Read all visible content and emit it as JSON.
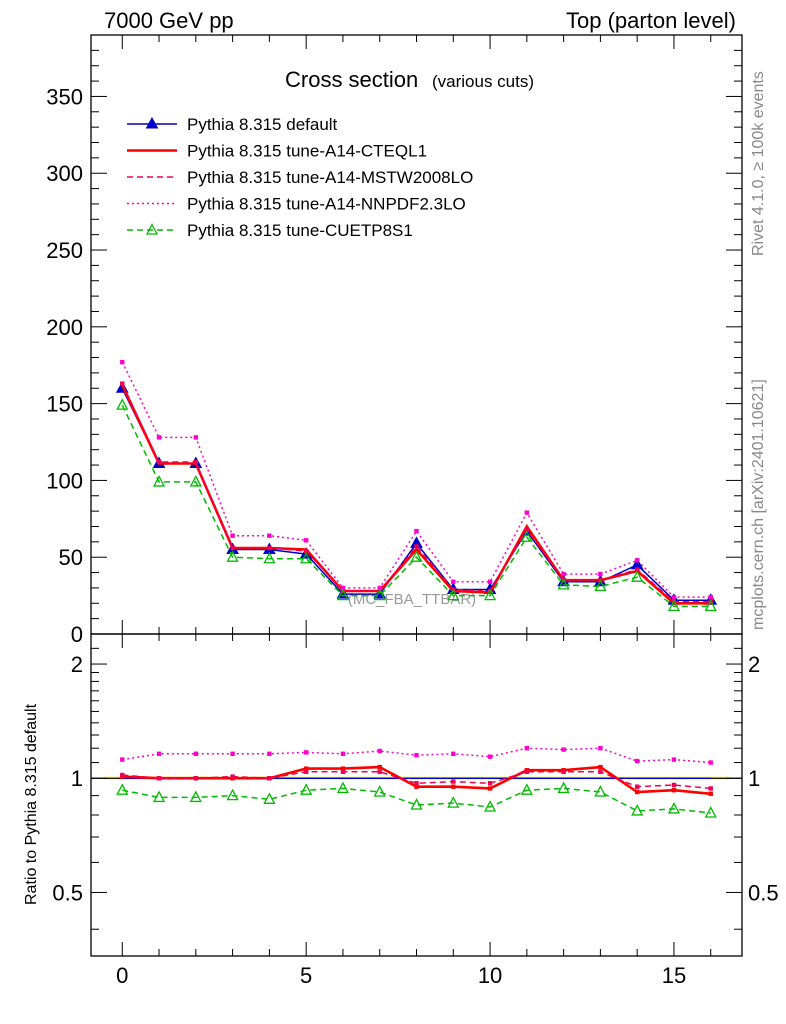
{
  "header": {
    "left": "7000 GeV pp",
    "right": "Top (parton level)"
  },
  "side_labels": {
    "top": "Rivet 4.1.0, ≥ 100k events",
    "bottom": "mcplots.cern.ch [arXiv:2401.10621]"
  },
  "watermark": "(MC_FBA_TTBAR)",
  "chart_data": [
    {
      "type": "line",
      "title": "Cross section",
      "subtitle": "(various cuts)",
      "xlabel": "",
      "ylabel": "",
      "xlim": [
        -0.85,
        16.85
      ],
      "ylim": [
        0,
        390
      ],
      "yticks_major": [
        0,
        50,
        100,
        150,
        200,
        250,
        300,
        350
      ],
      "ytick_labels": [
        "0",
        "50",
        "100",
        "150",
        "200",
        "250",
        "300",
        "350"
      ],
      "x": [
        0,
        1,
        2,
        3,
        4,
        5,
        6,
        7,
        8,
        9,
        10,
        11,
        12,
        13,
        14,
        15,
        16
      ],
      "series": [
        {
          "name": "Pythia 8.315 default",
          "color": "#0000cc",
          "style": "solid",
          "marker": "triangle-filled",
          "values": [
            160,
            111,
            111,
            55,
            55,
            52,
            26,
            26,
            59,
            29,
            29,
            67,
            34,
            34,
            45,
            22,
            22
          ]
        },
        {
          "name": "Pythia 8.315 tune-A14-CTEQL1",
          "color": "#ff0000",
          "style": "solid-thick",
          "marker": "none",
          "values": [
            162,
            111,
            111,
            56,
            56,
            55,
            28,
            28,
            55,
            28,
            27,
            70,
            35,
            35,
            41,
            20,
            20
          ]
        },
        {
          "name": "Pythia 8.315 tune-A14-MSTW2008LO",
          "color": "#ee0055",
          "style": "dashed",
          "marker": "square-small",
          "values": [
            163,
            112,
            112,
            56,
            56,
            54,
            28,
            28,
            57,
            29,
            28,
            68,
            35,
            35,
            42,
            21,
            21
          ]
        },
        {
          "name": "Pythia 8.315 tune-A14-NNPDF2.3LO",
          "color": "#ff00cc",
          "style": "dotted",
          "marker": "square-small",
          "values": [
            177,
            128,
            128,
            64,
            64,
            61,
            30,
            30,
            67,
            34,
            34,
            79,
            39,
            39,
            48,
            24,
            24
          ]
        },
        {
          "name": "Pythia 8.315 tune-CUETP8S1",
          "color": "#00bb00",
          "style": "dashed",
          "marker": "triangle-open",
          "values": [
            149,
            99,
            99,
            50,
            49,
            49,
            25,
            25,
            50,
            25,
            25,
            63,
            32,
            31,
            37,
            18,
            18
          ]
        }
      ]
    },
    {
      "type": "line",
      "title": "",
      "ylabel": "Ratio to Pythia 8.315 default",
      "xlabel": "",
      "xlim": [
        -0.85,
        16.85
      ],
      "ylim": [
        0.34,
        2.4
      ],
      "yscale": "log",
      "yticks_major": [
        0.5,
        1,
        2
      ],
      "ytick_labels": [
        "0.5",
        "1",
        "2"
      ],
      "xticks_major": [
        0,
        5,
        10,
        15
      ],
      "xtick_labels": [
        "0",
        "5",
        "10",
        "15"
      ],
      "x": [
        0,
        1,
        2,
        3,
        4,
        5,
        6,
        7,
        8,
        9,
        10,
        11,
        12,
        13,
        14,
        15,
        16
      ],
      "reference_band": {
        "lo": 0.99,
        "hi": 1.01,
        "color": "#ffff66"
      },
      "series": [
        {
          "name": "Pythia 8.315 default",
          "color": "#0000cc",
          "style": "solid",
          "marker": "none",
          "values": [
            1,
            1,
            1,
            1,
            1,
            1,
            1,
            1,
            1,
            1,
            1,
            1,
            1,
            1,
            1,
            1,
            1
          ]
        },
        {
          "name": "Pythia 8.315 tune-A14-CTEQL1",
          "color": "#ff0000",
          "style": "solid-thick",
          "marker": "square-small",
          "values": [
            1.01,
            1.0,
            1.0,
            1.0,
            1.0,
            1.06,
            1.06,
            1.07,
            0.95,
            0.95,
            0.94,
            1.05,
            1.05,
            1.07,
            0.92,
            0.93,
            0.91
          ]
        },
        {
          "name": "Pythia 8.315 tune-A14-MSTW2008LO",
          "color": "#ee0055",
          "style": "dashed",
          "marker": "square-small",
          "values": [
            1.02,
            1.0,
            1.0,
            1.01,
            1.0,
            1.04,
            1.04,
            1.04,
            0.97,
            0.98,
            0.97,
            1.04,
            1.04,
            1.04,
            0.95,
            0.96,
            0.94
          ]
        },
        {
          "name": "Pythia 8.315 tune-A14-NNPDF2.3LO",
          "color": "#ff00cc",
          "style": "dotted",
          "marker": "square-small",
          "values": [
            1.12,
            1.16,
            1.16,
            1.16,
            1.16,
            1.17,
            1.16,
            1.18,
            1.15,
            1.16,
            1.14,
            1.2,
            1.19,
            1.2,
            1.11,
            1.12,
            1.1
          ]
        },
        {
          "name": "Pythia 8.315 tune-CUETP8S1",
          "color": "#00bb00",
          "style": "dashed",
          "marker": "triangle-open",
          "values": [
            0.93,
            0.89,
            0.89,
            0.9,
            0.88,
            0.93,
            0.94,
            0.92,
            0.85,
            0.86,
            0.84,
            0.93,
            0.94,
            0.92,
            0.82,
            0.83,
            0.81
          ]
        }
      ]
    }
  ]
}
